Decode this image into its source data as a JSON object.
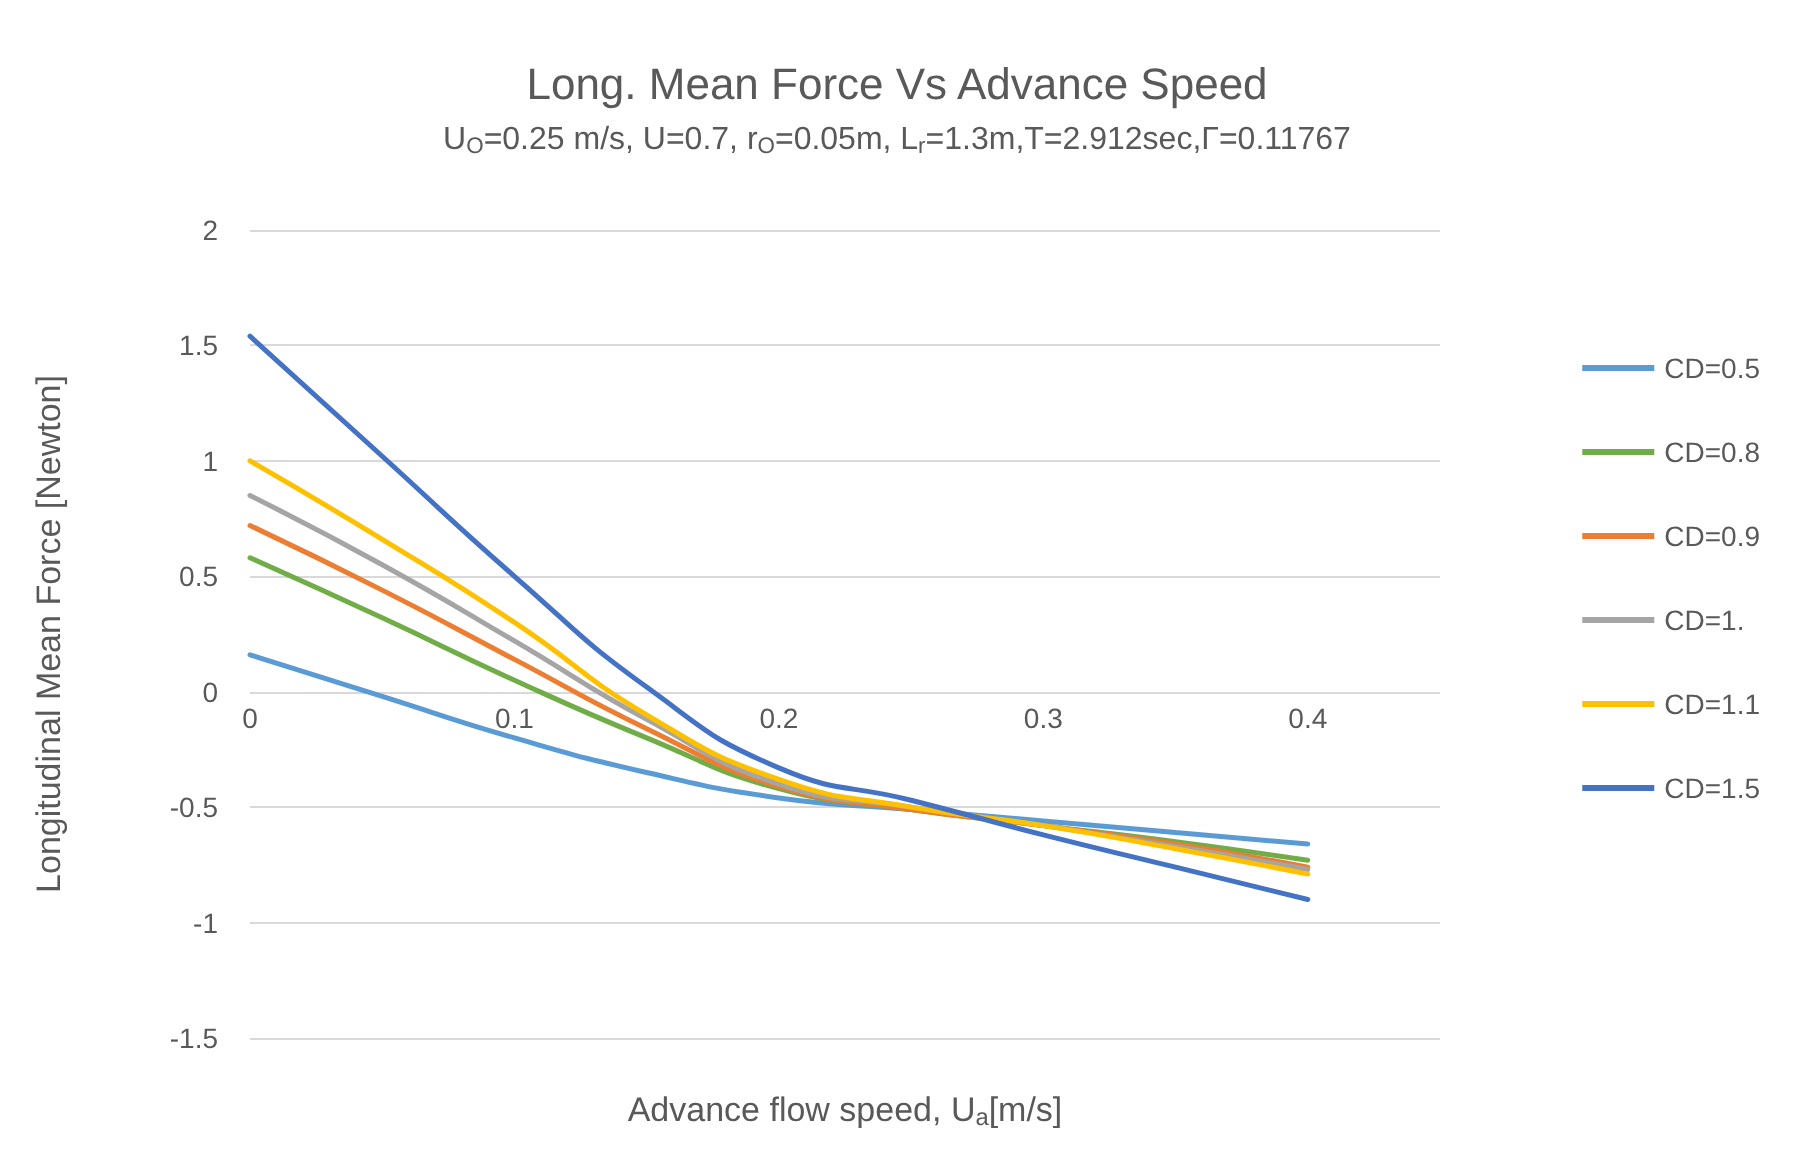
{
  "chart_data": {
    "type": "line",
    "title": "Long. Mean Force Vs Advance Speed",
    "subtitle": "U$_{O}$=0.25 m/s, U=0.7, r$_{O}$=0.05m, L$_{r}$=1.3m,T=2.912sec,Γ=0.11767",
    "xlabel": "Advance flow speed, U$_{a}$[m/s]",
    "ylabel": "Longitudinal Mean Force [Newton]",
    "x": [
      0,
      0.05,
      0.1,
      0.15,
      0.2,
      0.25,
      0.3,
      0.35,
      0.4
    ],
    "series": [
      {
        "name": "CD=0.5",
        "color": "#5b9bd5",
        "values": [
          0.16,
          -0.02,
          -0.2,
          -0.35,
          -0.46,
          -0.51,
          -0.56,
          -0.61,
          -0.66
        ]
      },
      {
        "name": "CD=0.8",
        "color": "#70ad47",
        "values": [
          0.58,
          0.32,
          0.05,
          -0.2,
          -0.42,
          -0.51,
          -0.58,
          -0.65,
          -0.73
        ]
      },
      {
        "name": "CD=0.9",
        "color": "#ed7d31",
        "values": [
          0.72,
          0.44,
          0.14,
          -0.16,
          -0.41,
          -0.51,
          -0.58,
          -0.66,
          -0.76
        ]
      },
      {
        "name": "CD=1.",
        "color": "#a5a5a5",
        "values": [
          0.85,
          0.55,
          0.22,
          -0.12,
          -0.4,
          -0.5,
          -0.58,
          -0.67,
          -0.77
        ]
      },
      {
        "name": "CD=1.1",
        "color": "#ffc000",
        "values": [
          1.0,
          0.66,
          0.3,
          -0.1,
          -0.38,
          -0.5,
          -0.58,
          -0.68,
          -0.79
        ]
      },
      {
        "name": "CD=1.5",
        "color": "#4472c4",
        "values": [
          1.54,
          1.02,
          0.5,
          0.02,
          -0.33,
          -0.47,
          -0.62,
          -0.76,
          -0.9
        ]
      }
    ],
    "xlim": [
      0,
      0.45
    ],
    "xticks": [
      0,
      0.1,
      0.2,
      0.3,
      0.4
    ],
    "ylim": [
      -1.5,
      2
    ],
    "yticks": [
      -1.5,
      -1,
      -0.5,
      0,
      0.5,
      1,
      1.5,
      2
    ],
    "grid": "y",
    "legend": "right",
    "marker": "none",
    "line_style": "solid"
  }
}
